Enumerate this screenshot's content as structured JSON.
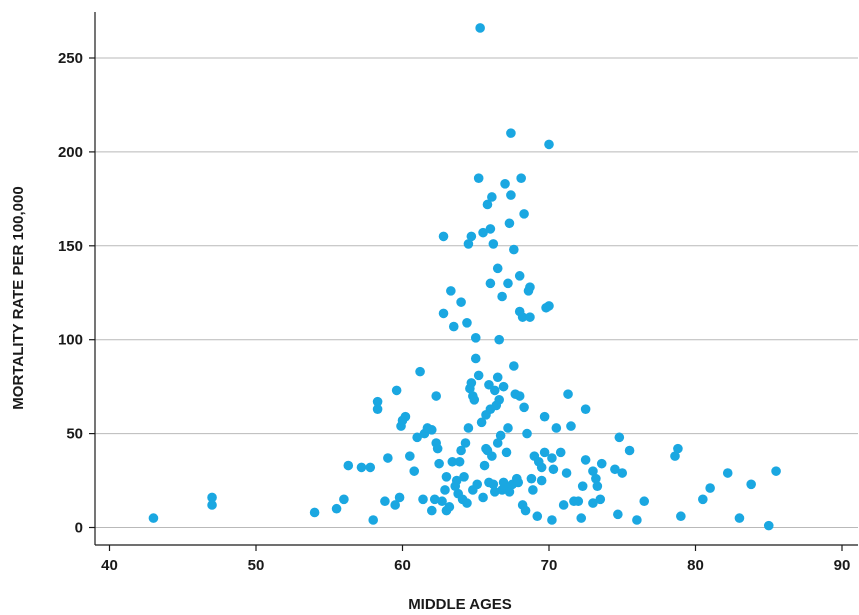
{
  "chart_data": {
    "type": "scatter",
    "title": "",
    "xlabel": "MIDDLE AGES",
    "ylabel": "MORTALITY RATE PER 100,000",
    "xlim": [
      39,
      91
    ],
    "ylim": [
      -8,
      275
    ],
    "xticks": [
      40,
      50,
      60,
      70,
      80,
      90
    ],
    "yticks": [
      0,
      50,
      100,
      150,
      200,
      250
    ],
    "grid": "horizontal",
    "point_color": "#1aa7e1",
    "points": [
      [
        43.0,
        5
      ],
      [
        47.0,
        16
      ],
      [
        47.0,
        12
      ],
      [
        54.0,
        8
      ],
      [
        55.5,
        10
      ],
      [
        56.0,
        15
      ],
      [
        56.3,
        33
      ],
      [
        57.2,
        32
      ],
      [
        57.8,
        32
      ],
      [
        58.0,
        4
      ],
      [
        58.3,
        67
      ],
      [
        58.3,
        63
      ],
      [
        58.8,
        14
      ],
      [
        59.0,
        37
      ],
      [
        59.5,
        12
      ],
      [
        59.6,
        73
      ],
      [
        59.8,
        16
      ],
      [
        59.9,
        54
      ],
      [
        60.0,
        57
      ],
      [
        60.2,
        59
      ],
      [
        60.5,
        38
      ],
      [
        60.8,
        30
      ],
      [
        61.0,
        48
      ],
      [
        61.2,
        83
      ],
      [
        61.4,
        15
      ],
      [
        61.5,
        50
      ],
      [
        61.7,
        53
      ],
      [
        62.0,
        52
      ],
      [
        62.0,
        9
      ],
      [
        62.2,
        15
      ],
      [
        62.3,
        70
      ],
      [
        62.3,
        45
      ],
      [
        62.4,
        42
      ],
      [
        62.5,
        34
      ],
      [
        62.7,
        14
      ],
      [
        62.8,
        114
      ],
      [
        62.8,
        155
      ],
      [
        62.9,
        20
      ],
      [
        63.0,
        27
      ],
      [
        63.0,
        9
      ],
      [
        63.2,
        11
      ],
      [
        63.3,
        126
      ],
      [
        63.4,
        35
      ],
      [
        63.5,
        107
      ],
      [
        63.6,
        22
      ],
      [
        63.7,
        25
      ],
      [
        63.8,
        18
      ],
      [
        63.9,
        35
      ],
      [
        64.0,
        120
      ],
      [
        64.0,
        41
      ],
      [
        64.1,
        15
      ],
      [
        64.2,
        27
      ],
      [
        64.3,
        45
      ],
      [
        64.4,
        109
      ],
      [
        64.4,
        13
      ],
      [
        64.5,
        53
      ],
      [
        64.5,
        151
      ],
      [
        64.6,
        74
      ],
      [
        64.7,
        155
      ],
      [
        64.7,
        77
      ],
      [
        64.8,
        20
      ],
      [
        64.8,
        70
      ],
      [
        64.9,
        68
      ],
      [
        65.0,
        101
      ],
      [
        65.0,
        90
      ],
      [
        65.1,
        23
      ],
      [
        65.2,
        81
      ],
      [
        65.2,
        186
      ],
      [
        65.3,
        266
      ],
      [
        65.4,
        56
      ],
      [
        65.5,
        157
      ],
      [
        65.5,
        16
      ],
      [
        65.6,
        33
      ],
      [
        65.7,
        60
      ],
      [
        65.7,
        42
      ],
      [
        65.8,
        41
      ],
      [
        65.8,
        172
      ],
      [
        65.9,
        76
      ],
      [
        65.9,
        24
      ],
      [
        66.0,
        159
      ],
      [
        66.0,
        130
      ],
      [
        66.0,
        63
      ],
      [
        66.1,
        176
      ],
      [
        66.1,
        38
      ],
      [
        66.2,
        23
      ],
      [
        66.2,
        151
      ],
      [
        66.3,
        73
      ],
      [
        66.3,
        19
      ],
      [
        66.4,
        65
      ],
      [
        66.5,
        80
      ],
      [
        66.5,
        45
      ],
      [
        66.5,
        138
      ],
      [
        66.6,
        68
      ],
      [
        66.6,
        100
      ],
      [
        66.7,
        49
      ],
      [
        66.8,
        20
      ],
      [
        66.8,
        123
      ],
      [
        66.9,
        75
      ],
      [
        66.9,
        24
      ],
      [
        67.0,
        183
      ],
      [
        67.0,
        21
      ],
      [
        67.1,
        40
      ],
      [
        67.2,
        130
      ],
      [
        67.2,
        53
      ],
      [
        67.3,
        19
      ],
      [
        67.3,
        162
      ],
      [
        67.4,
        210
      ],
      [
        67.4,
        177
      ],
      [
        67.5,
        23
      ],
      [
        67.6,
        148
      ],
      [
        67.6,
        86
      ],
      [
        67.7,
        71
      ],
      [
        67.8,
        26
      ],
      [
        67.9,
        24
      ],
      [
        68.0,
        134
      ],
      [
        68.0,
        70
      ],
      [
        68.0,
        115
      ],
      [
        68.1,
        186
      ],
      [
        68.2,
        112
      ],
      [
        68.2,
        12
      ],
      [
        68.3,
        64
      ],
      [
        68.3,
        167
      ],
      [
        68.4,
        9
      ],
      [
        68.5,
        50
      ],
      [
        68.6,
        126
      ],
      [
        68.7,
        128
      ],
      [
        68.7,
        112
      ],
      [
        68.8,
        26
      ],
      [
        68.9,
        20
      ],
      [
        69.0,
        38
      ],
      [
        69.2,
        6
      ],
      [
        69.3,
        35
      ],
      [
        69.5,
        32
      ],
      [
        69.5,
        25
      ],
      [
        69.7,
        40
      ],
      [
        69.7,
        59
      ],
      [
        69.8,
        117
      ],
      [
        70.0,
        118
      ],
      [
        70.0,
        204
      ],
      [
        70.2,
        37
      ],
      [
        70.2,
        4
      ],
      [
        70.3,
        31
      ],
      [
        70.5,
        53
      ],
      [
        70.8,
        40
      ],
      [
        71.0,
        12
      ],
      [
        71.2,
        29
      ],
      [
        71.3,
        71
      ],
      [
        71.5,
        54
      ],
      [
        71.7,
        14
      ],
      [
        72.0,
        14
      ],
      [
        72.2,
        5
      ],
      [
        72.3,
        22
      ],
      [
        72.5,
        36
      ],
      [
        72.5,
        63
      ],
      [
        73.0,
        30
      ],
      [
        73.0,
        13
      ],
      [
        73.2,
        26
      ],
      [
        73.3,
        22
      ],
      [
        73.5,
        15
      ],
      [
        73.6,
        34
      ],
      [
        74.5,
        31
      ],
      [
        74.7,
        7
      ],
      [
        74.8,
        48
      ],
      [
        75.0,
        29
      ],
      [
        75.5,
        41
      ],
      [
        76.0,
        4
      ],
      [
        76.5,
        14
      ],
      [
        78.6,
        38
      ],
      [
        78.8,
        42
      ],
      [
        79.0,
        6
      ],
      [
        80.5,
        15
      ],
      [
        81.0,
        21
      ],
      [
        82.2,
        29
      ],
      [
        83.0,
        5
      ],
      [
        83.8,
        23
      ],
      [
        85.0,
        1
      ],
      [
        85.5,
        30
      ]
    ]
  }
}
